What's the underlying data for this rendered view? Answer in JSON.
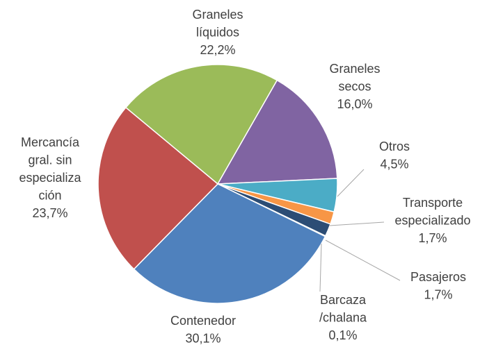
{
  "chart_data": {
    "type": "pie",
    "categories": [
      [
        "Graneles",
        "líquidos"
      ],
      [
        "Graneles",
        "secos"
      ],
      [
        "Otros"
      ],
      [
        "Transporte",
        "especializado"
      ],
      [
        "Pasajeros"
      ],
      [
        "Barcaza",
        "/chalana"
      ],
      [
        "Contenedor"
      ],
      [
        "Mercancía",
        "gral. sin",
        "especializa",
        "ción"
      ]
    ],
    "values": [
      22.2,
      16.0,
      4.5,
      1.7,
      1.7,
      0.1,
      30.1,
      23.7
    ],
    "value_labels": [
      "22,2%",
      "16,0%",
      "4,5%",
      "1,7%",
      "1,7%",
      "0,1%",
      "30,1%",
      "23,7%"
    ],
    "colors": [
      "#9bbb59",
      "#8064a2",
      "#4bacc6",
      "#f79646",
      "#2c4d75",
      "#4f81bd",
      "#4f81bd",
      "#c0504d"
    ]
  }
}
